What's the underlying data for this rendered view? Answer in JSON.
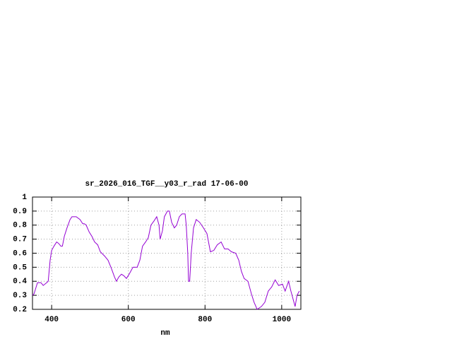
{
  "chart_data": {
    "type": "line",
    "title": "sr_2026_016_TGF__y03_r_rad 17-06-00",
    "x_label": "nm",
    "x": [
      350,
      354,
      363,
      372,
      378,
      387,
      391,
      396,
      400,
      406,
      413,
      418,
      424,
      428,
      433,
      440,
      448,
      453,
      464,
      474,
      481,
      485,
      490,
      498,
      505,
      512,
      520,
      527,
      538,
      547,
      556,
      564,
      569,
      575,
      582,
      588,
      595,
      602,
      612,
      623,
      630,
      637,
      645,
      652,
      659,
      667,
      674,
      680,
      683,
      689,
      694,
      702,
      707,
      713,
      720,
      726,
      733,
      740,
      748,
      751,
      755,
      757,
      760,
      764,
      770,
      777,
      786,
      796,
      805,
      814,
      823,
      832,
      842,
      851,
      860,
      869,
      880,
      888,
      895,
      902,
      912,
      921,
      928,
      936,
      947,
      956,
      965,
      974,
      983,
      992,
      1002,
      1009,
      1018,
      1024,
      1031,
      1035,
      1040,
      1046
    ],
    "series": [
      {
        "color": "#9400d3",
        "values": [
          0.3,
          0.31,
          0.39,
          0.39,
          0.37,
          0.39,
          0.4,
          0.55,
          0.62,
          0.65,
          0.68,
          0.67,
          0.65,
          0.65,
          0.72,
          0.78,
          0.84,
          0.86,
          0.86,
          0.84,
          0.81,
          0.81,
          0.8,
          0.75,
          0.72,
          0.68,
          0.66,
          0.61,
          0.58,
          0.55,
          0.49,
          0.43,
          0.4,
          0.43,
          0.45,
          0.44,
          0.42,
          0.45,
          0.5,
          0.5,
          0.55,
          0.65,
          0.68,
          0.71,
          0.8,
          0.83,
          0.86,
          0.8,
          0.7,
          0.76,
          0.86,
          0.9,
          0.9,
          0.82,
          0.78,
          0.8,
          0.86,
          0.88,
          0.88,
          0.8,
          0.6,
          0.4,
          0.4,
          0.6,
          0.78,
          0.84,
          0.82,
          0.78,
          0.74,
          0.61,
          0.62,
          0.66,
          0.68,
          0.63,
          0.63,
          0.61,
          0.6,
          0.55,
          0.47,
          0.42,
          0.4,
          0.31,
          0.25,
          0.2,
          0.22,
          0.25,
          0.33,
          0.36,
          0.41,
          0.37,
          0.38,
          0.33,
          0.4,
          0.33,
          0.26,
          0.22,
          0.3,
          0.33
        ]
      }
    ],
    "xlim": [
      350,
      1050
    ],
    "xticks": [
      400,
      600,
      800,
      1000
    ],
    "ylim": [
      0.2,
      1
    ],
    "yticks": [
      0.2,
      0.3,
      0.4,
      0.5,
      0.6,
      0.7,
      0.8,
      0.9,
      1
    ],
    "grid": true
  }
}
